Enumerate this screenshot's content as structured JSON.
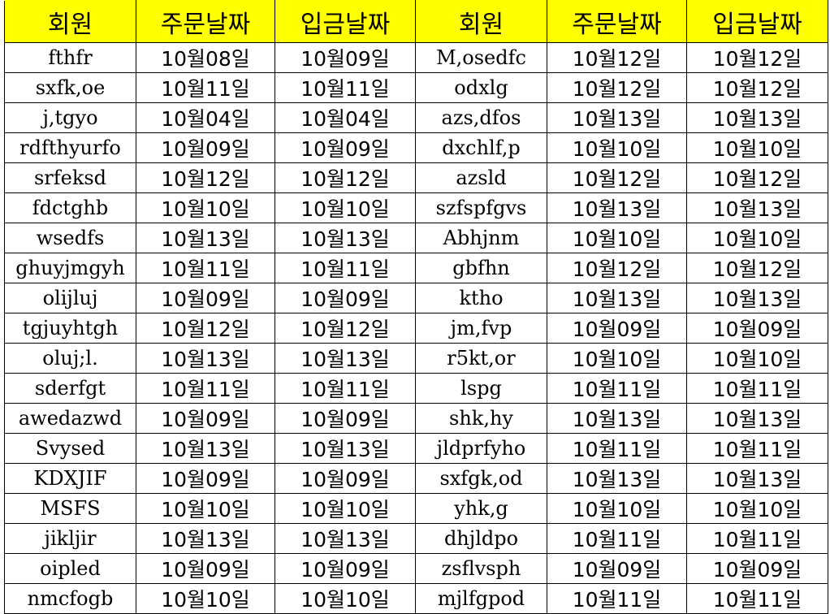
{
  "headers": [
    "회원",
    "주문날짜",
    "입금날짜",
    "회원",
    "주문날짜",
    "입금날짜"
  ],
  "rows": [
    [
      "fthfr",
      "10월08일",
      "10월09일",
      "M,osedfc",
      "10월12일",
      "10월12일"
    ],
    [
      "sxfk,oe",
      "10월11일",
      "10월11일",
      "odxlg",
      "10월12일",
      "10월12일"
    ],
    [
      "j,tgyo",
      "10월04일",
      "10월04일",
      "azs,dfos",
      "10월13일",
      "10월13일"
    ],
    [
      "rdfthyurfo",
      "10월09일",
      "10월09일",
      "dxchlf,p",
      "10월10일",
      "10월10일"
    ],
    [
      "srfeksd",
      "10월12일",
      "10월12일",
      "azsld",
      "10월12일",
      "10월12일"
    ],
    [
      "fdctghb",
      "10월10일",
      "10월10일",
      "szfspfgvs",
      "10월13일",
      "10월13일"
    ],
    [
      "wsedfs",
      "10월13일",
      "10월13일",
      "Abhjnm",
      "10월10일",
      "10월10일"
    ],
    [
      "ghuyjmgyh",
      "10월11일",
      "10월11일",
      "gbfhn",
      "10월12일",
      "10월12일"
    ],
    [
      "olijluj",
      "10월09일",
      "10월09일",
      "ktho",
      "10월13일",
      "10월13일"
    ],
    [
      "tgjuyhtgh",
      "10월12일",
      "10월12일",
      "jm,fvp",
      "10월09일",
      "10월09일"
    ],
    [
      "oluj;l.",
      "10월13일",
      "10월13일",
      "r5kt,or",
      "10월10일",
      "10월10일"
    ],
    [
      "sderfgt",
      "10월11일",
      "10월11일",
      "lspg",
      "10월11일",
      "10월11일"
    ],
    [
      "awedazwd",
      "10월09일",
      "10월09일",
      "shk,hy",
      "10월13일",
      "10월13일"
    ],
    [
      "Svysed",
      "10월13일",
      "10월13일",
      "jldprfyho",
      "10월11일",
      "10월11일"
    ],
    [
      "KDXJIF",
      "10월09일",
      "10월09일",
      "sxfgk,od",
      "10월13일",
      "10월13일"
    ],
    [
      "MSFS",
      "10월10일",
      "10월10일",
      "yhk,g",
      "10월10일",
      "10월10일"
    ],
    [
      "jikljir",
      "10월13일",
      "10월13일",
      "dhjldpo",
      "10월11일",
      "10월11일"
    ],
    [
      "oipled",
      "10월09일",
      "10월09일",
      "zsflvsph",
      "10월09일",
      "10월09일"
    ],
    [
      "nmcfogb",
      "10월10일",
      "10월10일",
      "mjlfgpod",
      "10월11일",
      "10월11일"
    ]
  ],
  "colors": {
    "header_bg": "#ffff00",
    "grid": "#000000"
  }
}
